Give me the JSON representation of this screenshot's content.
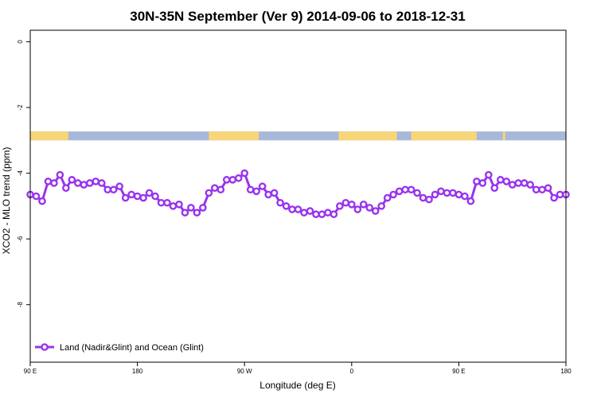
{
  "chart_data": {
    "type": "line",
    "title": "30N-35N September (Ver 9)   2014-09-06 to 2018-12-31",
    "xlabel": "Longitude (deg E)",
    "ylabel": "XCO2 - MLO trend (ppm)",
    "xlim": [
      90,
      540
    ],
    "ylim": [
      -9.75,
      0.35
    ],
    "x_ticks": [
      {
        "value": 90,
        "label": "90 E"
      },
      {
        "value": 180,
        "label": "180"
      },
      {
        "value": 270,
        "label": "90 W"
      },
      {
        "value": 360,
        "label": "0"
      },
      {
        "value": 450,
        "label": "90 E"
      },
      {
        "value": 540,
        "label": "180"
      }
    ],
    "y_ticks": [
      {
        "value": 0,
        "label": "0"
      },
      {
        "value": -2,
        "label": "-2"
      },
      {
        "value": -4,
        "label": "-4"
      },
      {
        "value": -6,
        "label": "-6"
      },
      {
        "value": -8,
        "label": "-8"
      }
    ],
    "land_ocean_bar": {
      "y_top": -2.73,
      "y_bottom": -3.0,
      "land_color": "#f7d67a",
      "ocean_color": "#a7b8d8",
      "land_ranges": [
        [
          90,
          122
        ],
        [
          240,
          282
        ],
        [
          349,
          398
        ],
        [
          410,
          465
        ],
        [
          487,
          489
        ]
      ]
    },
    "series": [
      {
        "name": "Land (Nadir&Glint) and Ocean (Glint)",
        "color": "#9933ee",
        "x": [
          90,
          95,
          100,
          105,
          110,
          115,
          120,
          125,
          130,
          135,
          140,
          145,
          150,
          155,
          160,
          165,
          170,
          175,
          180,
          185,
          190,
          195,
          200,
          205,
          210,
          215,
          220,
          225,
          230,
          235,
          240,
          245,
          250,
          255,
          260,
          265,
          270,
          275,
          280,
          285,
          290,
          295,
          300,
          305,
          310,
          315,
          320,
          325,
          330,
          335,
          340,
          345,
          350,
          355,
          360,
          365,
          370,
          375,
          380,
          385,
          390,
          395,
          400,
          405,
          410,
          415,
          420,
          425,
          430,
          435,
          440,
          445,
          450,
          455,
          460,
          465,
          470,
          475,
          480,
          485,
          490,
          495,
          500,
          505,
          510,
          515,
          520,
          525,
          530,
          535,
          540
        ],
        "values": [
          -4.65,
          -4.7,
          -4.85,
          -4.25,
          -4.3,
          -4.05,
          -4.45,
          -4.2,
          -4.3,
          -4.35,
          -4.3,
          -4.25,
          -4.3,
          -4.5,
          -4.5,
          -4.4,
          -4.75,
          -4.65,
          -4.7,
          -4.75,
          -4.6,
          -4.7,
          -4.9,
          -4.9,
          -5.0,
          -4.95,
          -5.2,
          -5.05,
          -5.2,
          -5.05,
          -4.6,
          -4.45,
          -4.5,
          -4.2,
          -4.2,
          -4.15,
          -4.0,
          -4.5,
          -4.55,
          -4.4,
          -4.65,
          -4.6,
          -4.9,
          -5.0,
          -5.1,
          -5.1,
          -5.2,
          -5.15,
          -5.25,
          -5.25,
          -5.2,
          -5.25,
          -5.0,
          -4.9,
          -4.95,
          -5.1,
          -4.95,
          -5.05,
          -5.15,
          -5.0,
          -4.75,
          -4.65,
          -4.55,
          -4.5,
          -4.5,
          -4.6,
          -4.75,
          -4.8,
          -4.65,
          -4.55,
          -4.6,
          -4.6,
          -4.65,
          -4.7,
          -4.85,
          -4.25,
          -4.3,
          -4.05,
          -4.45,
          -4.2,
          -4.25,
          -4.35,
          -4.3,
          -4.3,
          -4.35,
          -4.5,
          -4.5,
          -4.45,
          -4.75,
          -4.65,
          -4.65
        ]
      }
    ],
    "legend_position": "bottom-left",
    "grid": false
  }
}
